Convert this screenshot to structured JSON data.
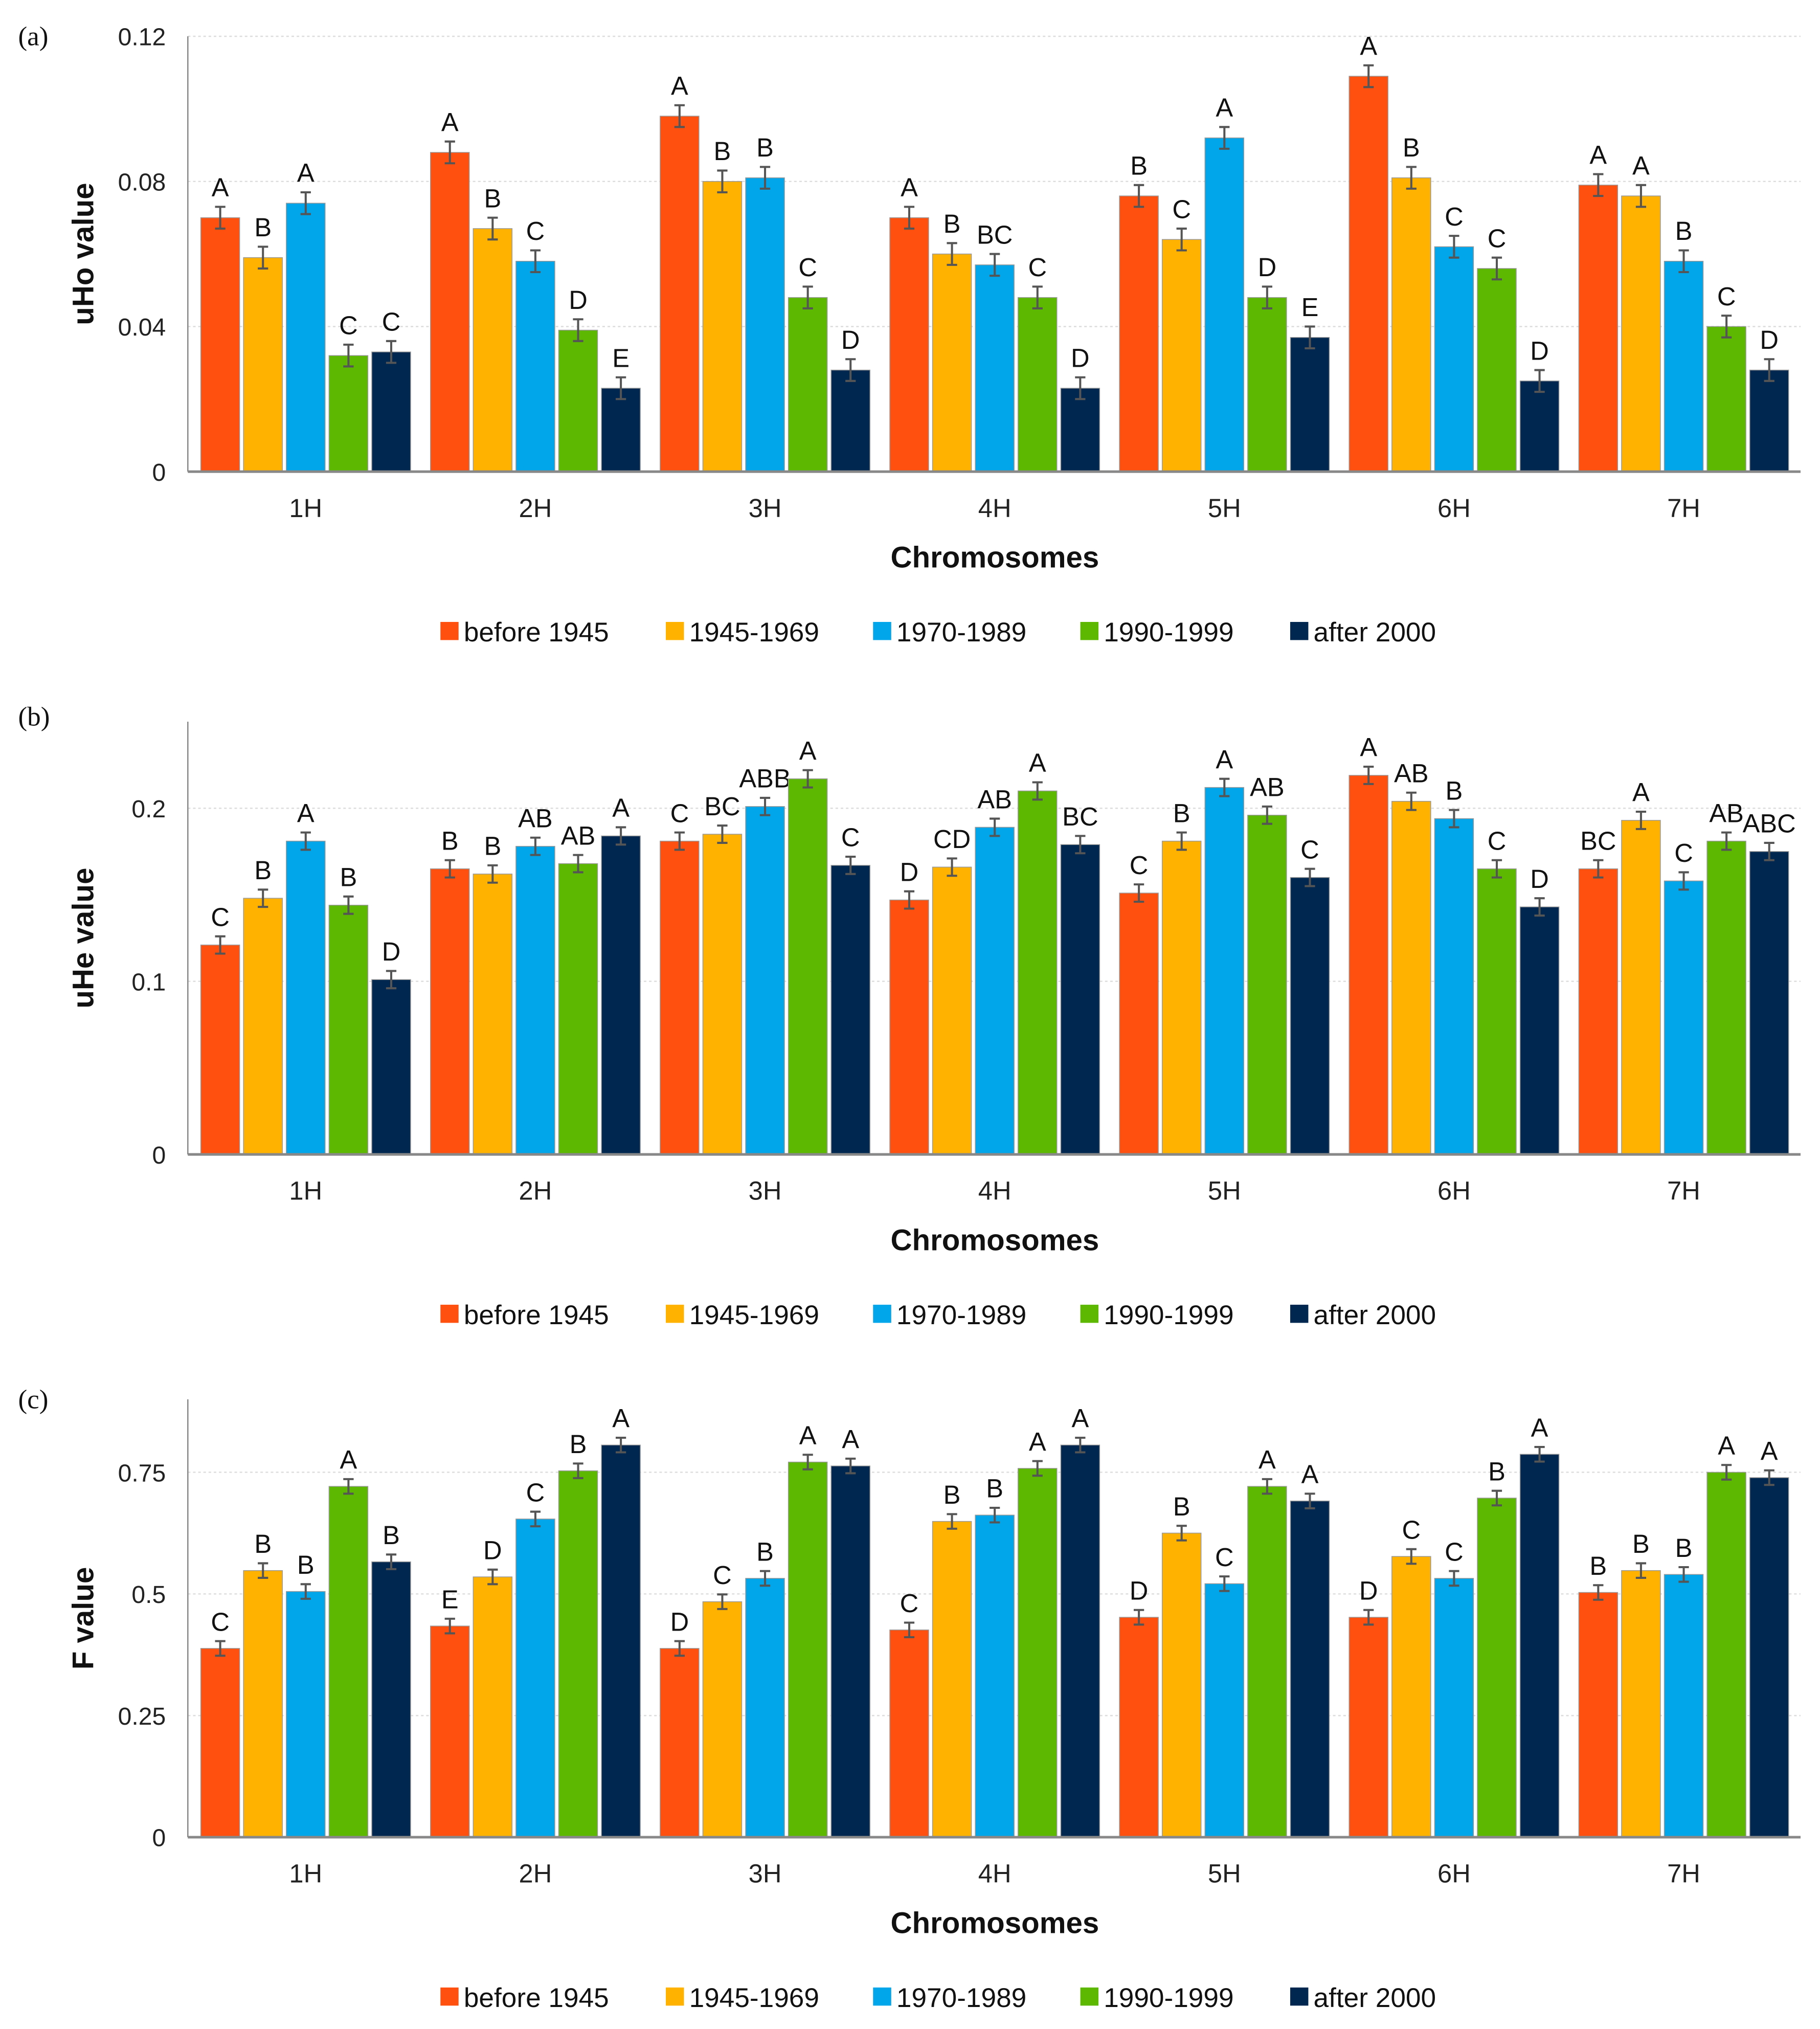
{
  "series_names": [
    "before 1945",
    "1945-1969",
    "1970-1989",
    "1990-1999",
    "after 2000"
  ],
  "colors": [
    "#FF5010",
    "#FFB300",
    "#00A5EA",
    "#5CB800",
    "#002750"
  ],
  "chart_data": [
    {
      "type": "bar",
      "panel_label": "(a)",
      "xlabel": "Chromosomes",
      "ylabel": "uHo value",
      "categories": [
        "1H",
        "2H",
        "3H",
        "4H",
        "5H",
        "6H",
        "7H"
      ],
      "ylim": [
        0,
        0.12
      ],
      "yticks": [
        0,
        0.04,
        0.08,
        0.12
      ],
      "ytick_labels": [
        "0",
        "0.04",
        "0.08",
        "0.12"
      ],
      "grid": true,
      "legend": "bottom",
      "error": 0.003,
      "series": [
        {
          "name": "before 1945",
          "values": [
            0.07,
            0.088,
            0.098,
            0.07,
            0.076,
            0.109,
            0.079
          ],
          "letters": [
            "A",
            "A",
            "A",
            "A",
            "B",
            "A",
            "A"
          ]
        },
        {
          "name": "1945-1969",
          "values": [
            0.059,
            0.067,
            0.08,
            0.06,
            0.064,
            0.081,
            0.076
          ],
          "letters": [
            "B",
            "B",
            "B",
            "B",
            "C",
            "B",
            "A"
          ]
        },
        {
          "name": "1970-1989",
          "values": [
            0.074,
            0.058,
            0.081,
            0.057,
            0.092,
            0.062,
            0.058
          ],
          "letters": [
            "A",
            "C",
            "B",
            "BC",
            "A",
            "C",
            "B"
          ]
        },
        {
          "name": "1990-1999",
          "values": [
            0.032,
            0.039,
            0.048,
            0.048,
            0.048,
            0.056,
            0.04
          ],
          "letters": [
            "C",
            "D",
            "C",
            "C",
            "D",
            "C",
            "C"
          ]
        },
        {
          "name": "after 2000",
          "values": [
            0.033,
            0.023,
            0.028,
            0.023,
            0.037,
            0.025,
            0.028
          ],
          "letters": [
            "C",
            "E",
            "D",
            "D",
            "E",
            "D",
            "D"
          ]
        }
      ]
    },
    {
      "type": "bar",
      "panel_label": "(b)",
      "xlabel": "Chromosomes",
      "ylabel": "uHe value",
      "categories": [
        "1H",
        "2H",
        "3H",
        "4H",
        "5H",
        "6H",
        "7H"
      ],
      "ylim": [
        0,
        0.25
      ],
      "yticks": [
        0,
        0.1,
        0.2
      ],
      "ytick_labels": [
        "0",
        "0.1",
        "0.2"
      ],
      "grid": true,
      "legend": "bottom",
      "error": 0.005,
      "series": [
        {
          "name": "before 1945",
          "values": [
            0.121,
            0.165,
            0.181,
            0.147,
            0.151,
            0.219,
            0.165
          ],
          "letters": [
            "C",
            "B",
            "C",
            "D",
            "C",
            "A",
            "BC"
          ]
        },
        {
          "name": "1945-1969",
          "values": [
            0.148,
            0.162,
            0.185,
            0.166,
            0.181,
            0.204,
            0.193
          ],
          "letters": [
            "B",
            "B",
            "BC",
            "CD",
            "B",
            "AB",
            "A"
          ]
        },
        {
          "name": "1970-1989",
          "values": [
            0.181,
            0.178,
            0.201,
            0.189,
            0.212,
            0.194,
            0.158
          ],
          "letters": [
            "A",
            "AB",
            "ABB",
            "AB",
            "A",
            "B",
            "C"
          ]
        },
        {
          "name": "1990-1999",
          "values": [
            0.144,
            0.168,
            0.217,
            0.21,
            0.196,
            0.165,
            0.181
          ],
          "letters": [
            "B",
            "AB",
            "A",
            "A",
            "AB",
            "C",
            "AB"
          ]
        },
        {
          "name": "after 2000",
          "values": [
            0.101,
            0.184,
            0.167,
            0.179,
            0.16,
            0.143,
            0.175
          ],
          "letters": [
            "D",
            "A",
            "C",
            "BC",
            "C",
            "D",
            "ABC"
          ]
        }
      ]
    },
    {
      "type": "bar",
      "panel_label": "(c)",
      "xlabel": "Chromosomes",
      "ylabel": "F value",
      "categories": [
        "1H",
        "2H",
        "3H",
        "4H",
        "5H",
        "6H",
        "7H"
      ],
      "ylim": [
        0,
        0.9
      ],
      "yticks": [
        0,
        0.25,
        0.5,
        0.75
      ],
      "ytick_labels": [
        "0",
        "0.25",
        "0.5",
        "0.75"
      ],
      "grid": true,
      "legend": "bottom",
      "error": 0.015,
      "series": [
        {
          "name": "before 1945",
          "values": [
            0.388,
            0.434,
            0.388,
            0.426,
            0.452,
            0.452,
            0.503
          ],
          "letters": [
            "C",
            "E",
            "D",
            "C",
            "D",
            "D",
            "B"
          ]
        },
        {
          "name": "1945-1969",
          "values": [
            0.548,
            0.535,
            0.484,
            0.649,
            0.625,
            0.577,
            0.548
          ],
          "letters": [
            "B",
            "D",
            "C",
            "B",
            "B",
            "C",
            "B"
          ]
        },
        {
          "name": "1970-1989",
          "values": [
            0.505,
            0.654,
            0.532,
            0.662,
            0.521,
            0.532,
            0.54
          ],
          "letters": [
            "B",
            "C",
            "B",
            "B",
            "C",
            "C",
            "B"
          ]
        },
        {
          "name": "1990-1999",
          "values": [
            0.721,
            0.753,
            0.771,
            0.758,
            0.721,
            0.697,
            0.75
          ],
          "letters": [
            "A",
            "B",
            "A",
            "A",
            "A",
            "B",
            "A"
          ]
        },
        {
          "name": "after 2000",
          "values": [
            0.566,
            0.806,
            0.763,
            0.806,
            0.691,
            0.787,
            0.739
          ],
          "letters": [
            "B",
            "A",
            "A",
            "A",
            "A",
            "A",
            "A"
          ]
        }
      ]
    }
  ]
}
